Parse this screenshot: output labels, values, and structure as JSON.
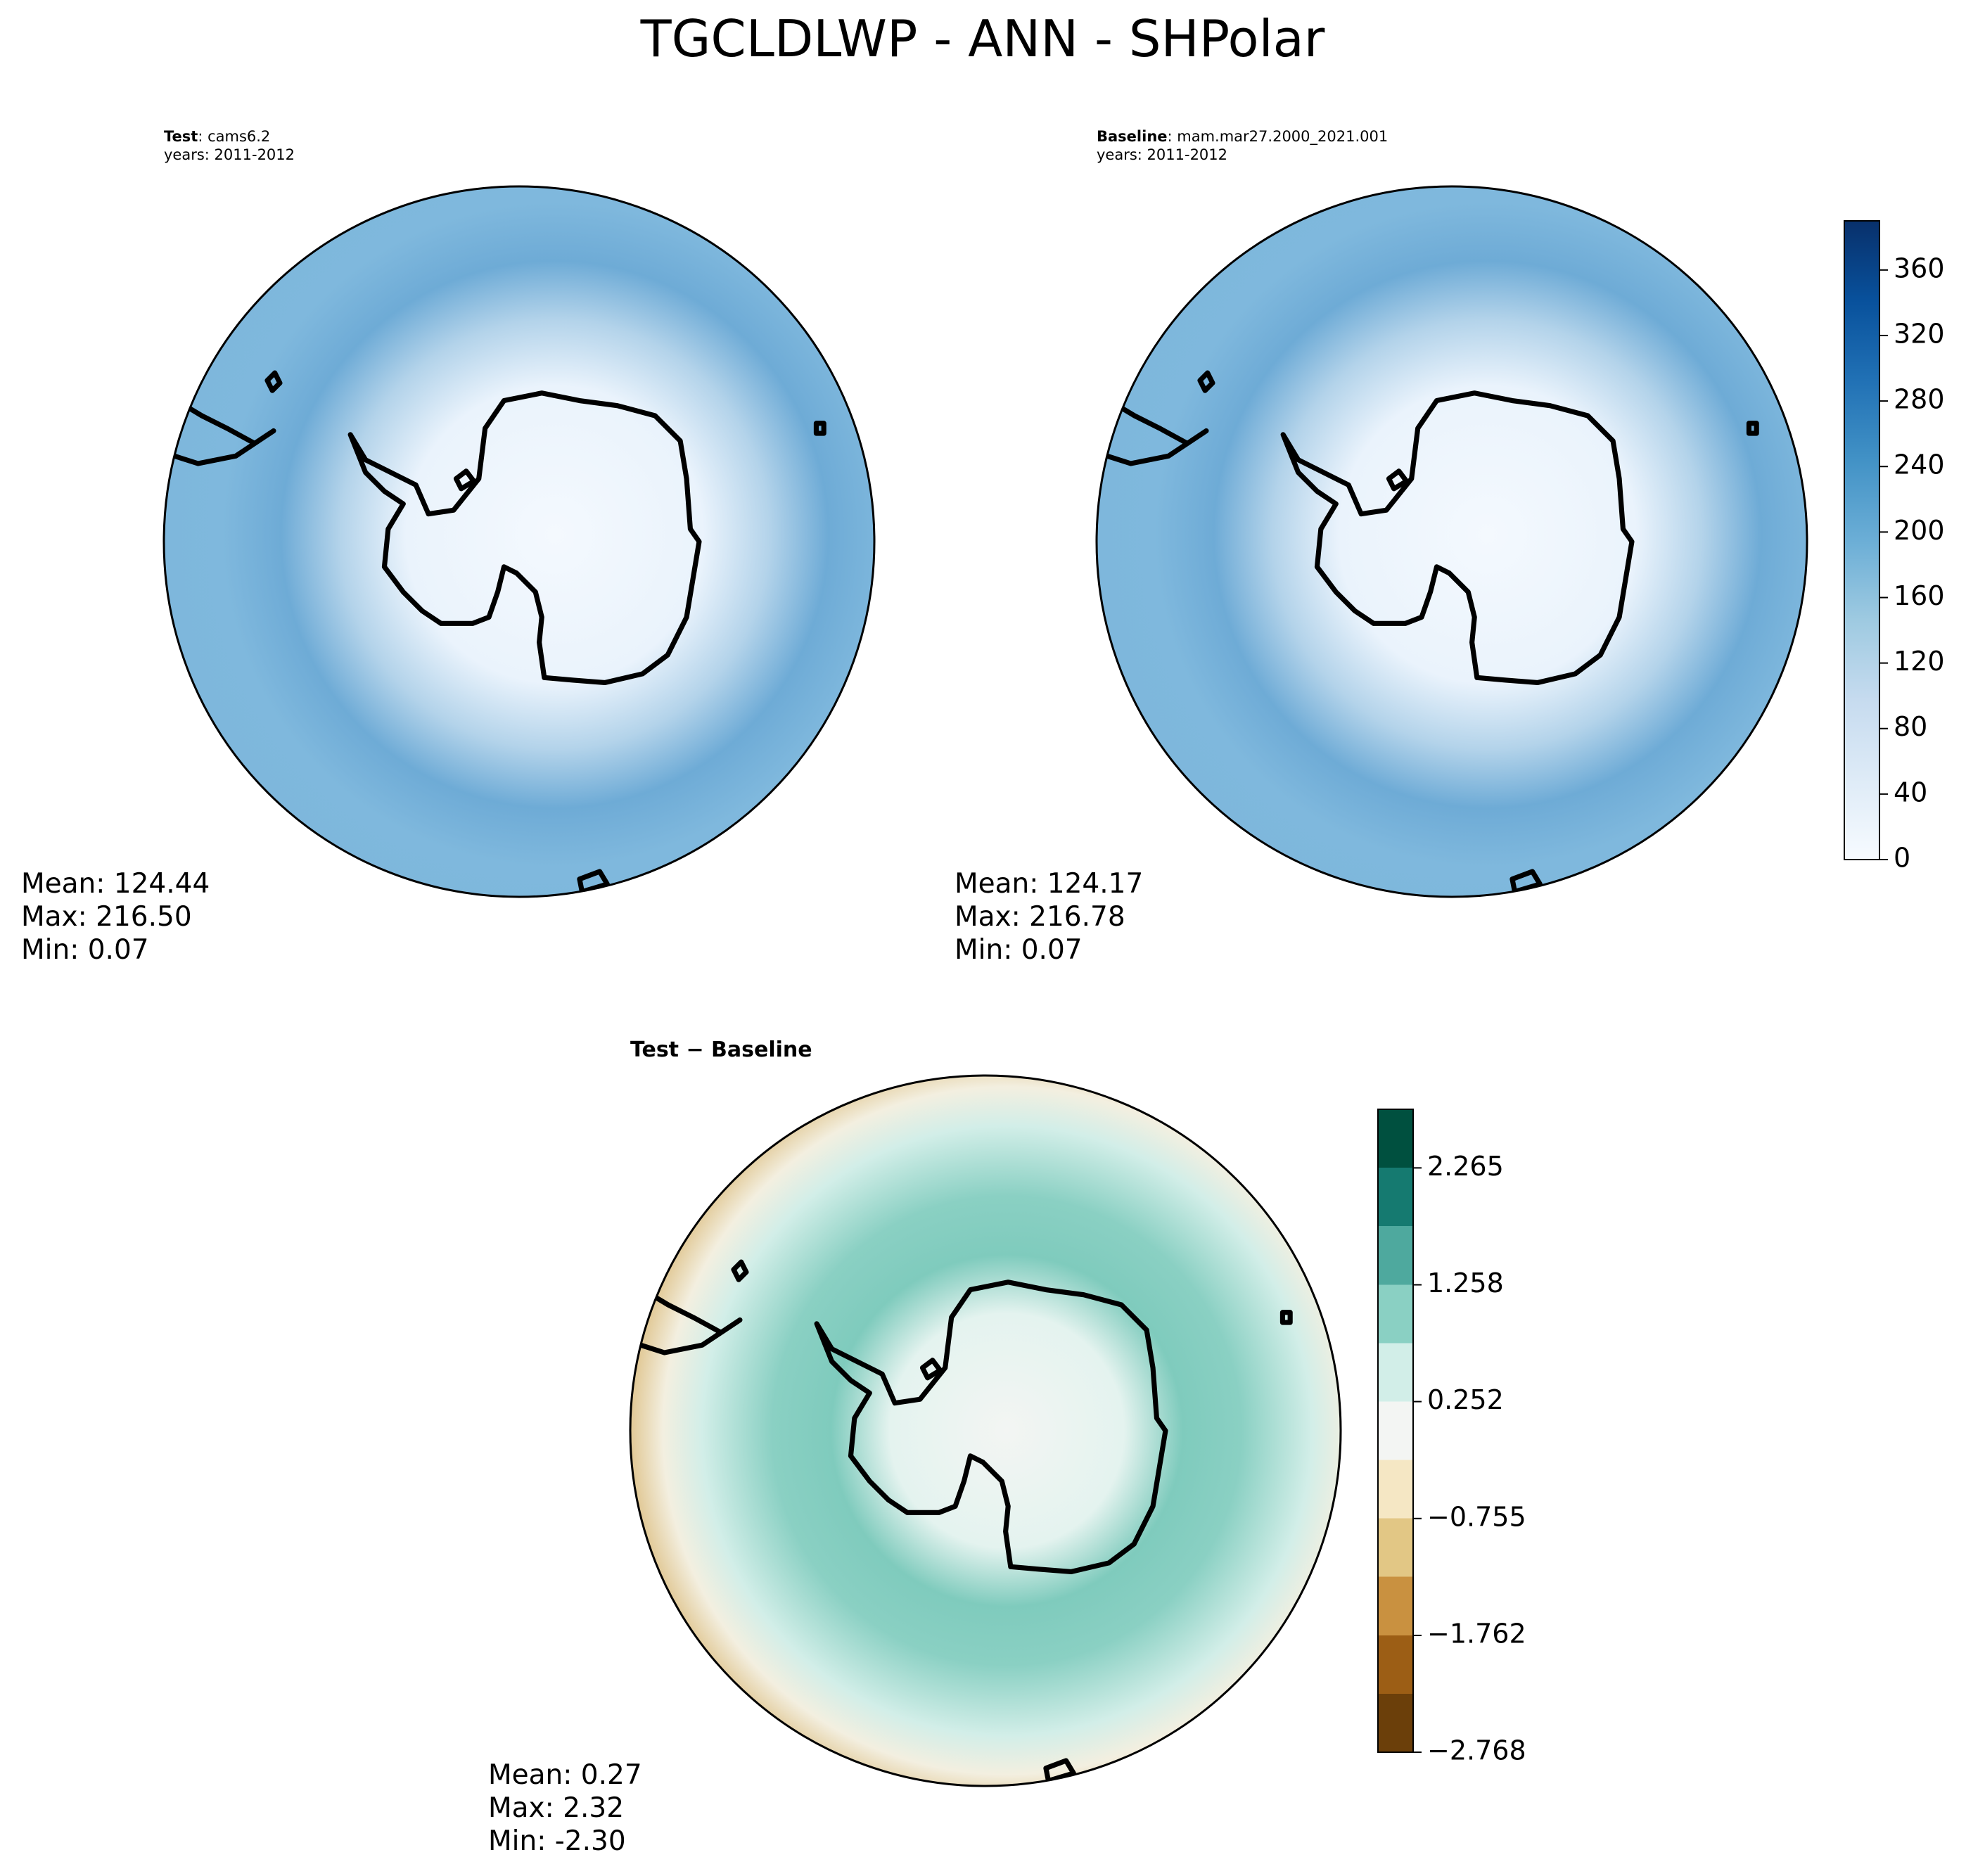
{
  "title": "TGCLDLWP - ANN - SHPolar",
  "chart_data": [
    {
      "type": "polar-map",
      "label": "Test",
      "case": ": cams6.2",
      "years": "years: 2011-2012",
      "stats": [
        "Mean: 124.44",
        "Max: 216.50",
        "Min:  0.07"
      ]
    },
    {
      "type": "polar-map",
      "label": "Baseline",
      "case": ": mam.mar27.2000_2021.001",
      "years": "years: 2011-2012",
      "stats": [
        "Mean: 124.17",
        "Max: 216.78",
        "Min:  0.07"
      ],
      "colorbar": {
        "ylim": [
          0,
          390
        ],
        "yticks": [
          0,
          40,
          80,
          120,
          160,
          200,
          240,
          280,
          320,
          360
        ],
        "discrete": false,
        "colors": [
          "#f7fbff",
          "#deebf7",
          "#c6dbef",
          "#9ecae1",
          "#6baed6",
          "#4292c6",
          "#2171b5",
          "#08519c",
          "#08306b"
        ]
      }
    },
    {
      "type": "polar-map",
      "label": "Test − Baseline",
      "stats": [
        "Mean:  0.27",
        "Max:  2.32",
        "Min: -2.30"
      ],
      "colorbar": {
        "ylim": [
          -2.768,
          2.77
        ],
        "discrete": true,
        "yticks": [
          {
            "value": -2.768,
            "label": "−2.768"
          },
          {
            "value": -1.762,
            "label": "−1.762"
          },
          {
            "value": -0.755,
            "label": "−0.755"
          },
          0.252,
          1.258,
          2.265
        ],
        "colors": [
          "#6b3f0a",
          "#9c5e15",
          "#c99140",
          "#e2c785",
          "#f5e7c4",
          "#f3f5f3",
          "#d2eee8",
          "#8ad0c3",
          "#4ea99e",
          "#157a70",
          "#00503f"
        ]
      }
    }
  ]
}
